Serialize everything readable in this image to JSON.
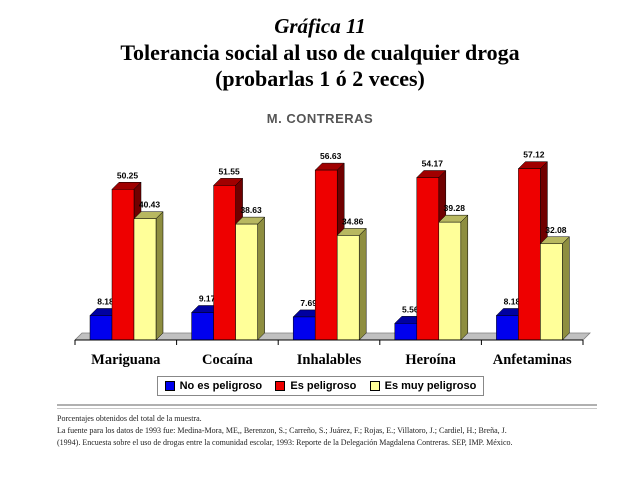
{
  "header": {
    "kicker": "Gráfica 11",
    "title_line1": "Tolerancia social al uso de cualquier droga",
    "title_line2": "(probarlas 1 ó 2 veces)",
    "author": "M. CONTRERAS"
  },
  "chart_data": {
    "type": "bar",
    "categories": [
      "Mariguana",
      "Cocaína",
      "Inhalables",
      "Heroína",
      "Anfetaminas"
    ],
    "series": [
      {
        "name": "No es peligroso",
        "color": "#0000ee",
        "values": [
          8.18,
          9.17,
          7.69,
          5.56,
          8.18
        ]
      },
      {
        "name": "Es peligroso",
        "color": "#ee0000",
        "values": [
          50.25,
          51.55,
          56.63,
          54.17,
          57.12
        ]
      },
      {
        "name": "Es muy peligroso",
        "color": "#ffff99",
        "values": [
          40.43,
          38.63,
          34.86,
          39.28,
          32.08
        ]
      }
    ],
    "value_labels": [
      [
        "8.18",
        "9.17",
        "7.69",
        "5.56",
        "8.18"
      ],
      [
        "50.25",
        "51.55",
        "56.63",
        "54.17",
        "57.12"
      ],
      [
        "40.43",
        "38.63",
        "34.86",
        "39.28",
        "32.08"
      ]
    ],
    "ylim": [
      0,
      60
    ],
    "grid": false,
    "legend_position": "bottom",
    "three_d": true
  },
  "notes": {
    "line1": "Porcentajes obtenidos del total de la muestra.",
    "line2": "La fuente para los datos de 1993 fue: Medina-Mora, ME,, Berenzon, S.; Carreño, S.; Juárez, F.; Rojas, E.; Villatoro, J.; Cardiel, H.; Breña, J.",
    "line3": "(1994). Encuesta sobre el uso de drogas entre la comunidad escolar, 1993: Reporte de la Delegación Magdalena Contreras. SEP, IMP. México."
  }
}
